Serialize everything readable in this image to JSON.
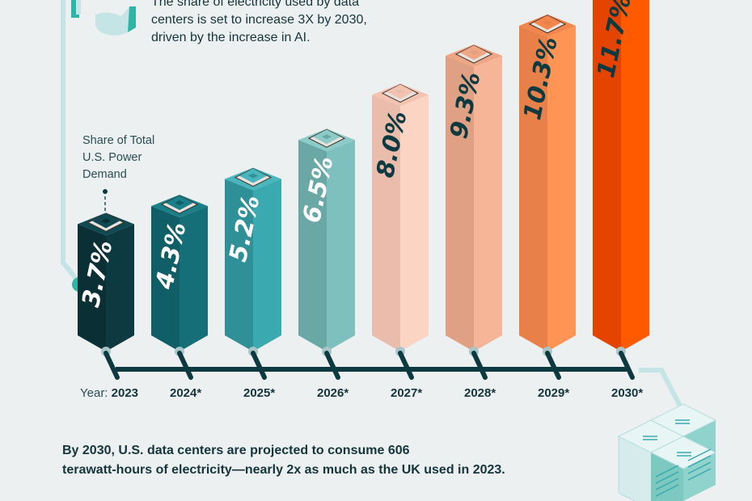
{
  "intro_text": "The share of electricity used by data centers is set to increase 3X by 2030, driven by the increase in AI.",
  "intro_lines": [
    "The share of electricity used by data",
    "centers is set to increase 3X by 2030,",
    "driven by the increase in AI."
  ],
  "legend_label_lines": [
    "Share of Total",
    "U.S. Power",
    "Demand"
  ],
  "footnote_lines": [
    "By 2030, U.S. data centers are projected to consume 606",
    "terawatt-hours of electricity—nearly 2x as much as the UK used in 2023."
  ],
  "year_prefix": "Year:",
  "chart_data": {
    "type": "bar",
    "title": "Share of Total U.S. Power Demand used by data centers",
    "xlabel": "Year",
    "ylabel": "Share of Total U.S. Power Demand (%)",
    "categories": [
      "2023",
      "2024*",
      "2025*",
      "2026*",
      "2027*",
      "2028*",
      "2029*",
      "2030*"
    ],
    "values": [
      3.7,
      4.3,
      5.2,
      6.5,
      8.0,
      9.3,
      10.3,
      11.7
    ],
    "data_labels": [
      "3.7%",
      "4.3%",
      "5.2%",
      "6.5%",
      "8.0%",
      "9.3%",
      "10.3%",
      "11.7%"
    ],
    "ylim": [
      0,
      12
    ],
    "grid": false,
    "legend": "none",
    "colors": [
      {
        "front": "#0d3a40",
        "side": "#0a2f35",
        "top": "#0f4a52",
        "label": "#ffffff"
      },
      {
        "front": "#146f78",
        "side": "#105e66",
        "top": "#1a7f88",
        "label": "#ffffff"
      },
      {
        "front": "#3aa9b0",
        "side": "#2f9197",
        "top": "#48b6bc",
        "label": "#ffffff"
      },
      {
        "front": "#7ec0bd",
        "side": "#6aa8a6",
        "top": "#8ccbc7",
        "label": "#ffffff"
      },
      {
        "front": "#fbd4c4",
        "side": "#e9bcac",
        "top": "#f3c3b1",
        "label": "#0d3a40"
      },
      {
        "front": "#f5b596",
        "side": "#e0a083",
        "top": "#eea685",
        "label": "#0d3a40"
      },
      {
        "front": "#ff9455",
        "side": "#e8804a",
        "top": "#f2864c",
        "label": "#0d3a40"
      },
      {
        "front": "#ff5a00",
        "side": "#e54300",
        "top": "#f04f05",
        "label": "#0d3a40"
      }
    ]
  },
  "colors": {
    "background": "#edf0f1",
    "text_dark": "#14353b",
    "timeline": "#0d3a40",
    "accent_light": "#c4e4e6",
    "accent_teal": "#2fb5a6"
  }
}
